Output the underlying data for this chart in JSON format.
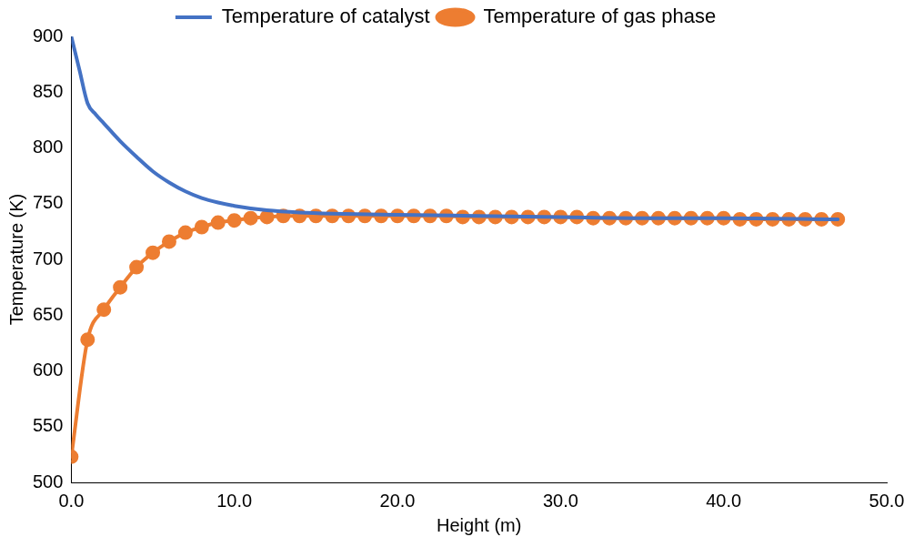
{
  "chart_data": {
    "type": "line",
    "xlabel": "Height (m)",
    "ylabel": "Temperature (K)",
    "xlim": [
      0,
      50
    ],
    "xticks": [
      {
        "value": 0,
        "label": "0.0"
      },
      {
        "value": 10,
        "label": "10.0"
      },
      {
        "value": 20,
        "label": "20.0"
      },
      {
        "value": 30,
        "label": "30.0"
      },
      {
        "value": 40,
        "label": "40.0"
      },
      {
        "value": 50,
        "label": "50.0"
      }
    ],
    "ylim": [
      500,
      900
    ],
    "yticks": [
      500,
      550,
      600,
      650,
      700,
      750,
      800,
      850,
      900
    ],
    "grid": false,
    "legend": "top",
    "series": [
      {
        "name": "Temperature of catalyst",
        "color": "#4472c4",
        "marker": "none",
        "x": [
          0,
          0.5,
          1,
          1.5,
          2,
          3,
          4,
          5,
          6,
          7,
          8,
          9,
          10,
          12,
          14,
          16,
          20,
          25,
          30,
          35,
          40,
          47
        ],
        "values": [
          900,
          870,
          840,
          830,
          822,
          806,
          792,
          779,
          769,
          761,
          755,
          751,
          748,
          744,
          742,
          741,
          740,
          739,
          738,
          737,
          737,
          736
        ]
      },
      {
        "name": "Temperature of gas phase",
        "color": "#ed7d31",
        "marker": "circle",
        "x": [
          0,
          1,
          2,
          3,
          4,
          5,
          6,
          7,
          8,
          9,
          10,
          11,
          12,
          13,
          14,
          15,
          16,
          17,
          18,
          19,
          20,
          21,
          22,
          23,
          24,
          25,
          26,
          27,
          28,
          29,
          30,
          31,
          32,
          33,
          34,
          35,
          36,
          37,
          38,
          39,
          40,
          41,
          42,
          43,
          44,
          45,
          46,
          47
        ],
        "values": [
          523,
          628,
          655,
          675,
          693,
          706,
          716,
          724,
          729,
          733,
          735,
          737,
          738,
          739,
          739,
          739,
          739,
          739,
          739,
          739,
          739,
          739,
          739,
          739,
          738,
          738,
          738,
          738,
          738,
          738,
          738,
          738,
          737,
          737,
          737,
          737,
          737,
          737,
          737,
          737,
          737,
          736,
          736,
          736,
          736,
          736,
          736,
          736
        ]
      }
    ]
  }
}
